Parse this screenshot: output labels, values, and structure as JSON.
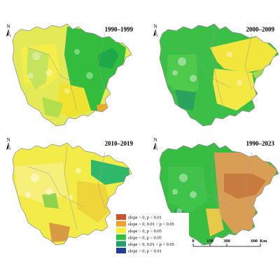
{
  "panels": [
    {
      "title": "1990–1999"
    },
    {
      "title": "2000–2009"
    },
    {
      "title": "2010–2019"
    },
    {
      "title": "1990–2023"
    }
  ],
  "north_arrow_letter": "N",
  "legend": [
    {
      "label": "slope > 0,  p  < 0.01",
      "color": "#c8532c"
    },
    {
      "label": "slope > 0,  0.01 < p  < 0.05",
      "color": "#f0a12a"
    },
    {
      "label": "slope > 0,  p  > 0.05",
      "color": "#f7ef32"
    },
    {
      "label": "slope < 0,  p  > 0.05",
      "color": "#2ec33b"
    },
    {
      "label": "slope < 0,  0.01 < p  < 0.05",
      "color": "#23a06a"
    },
    {
      "label": "slope < 0,  p  < 0.01",
      "color": "#1f3f9a"
    }
  ],
  "scale_bar": {
    "ticks": [
      "0",
      "150",
      "300",
      "600"
    ],
    "unit": "Km"
  }
}
